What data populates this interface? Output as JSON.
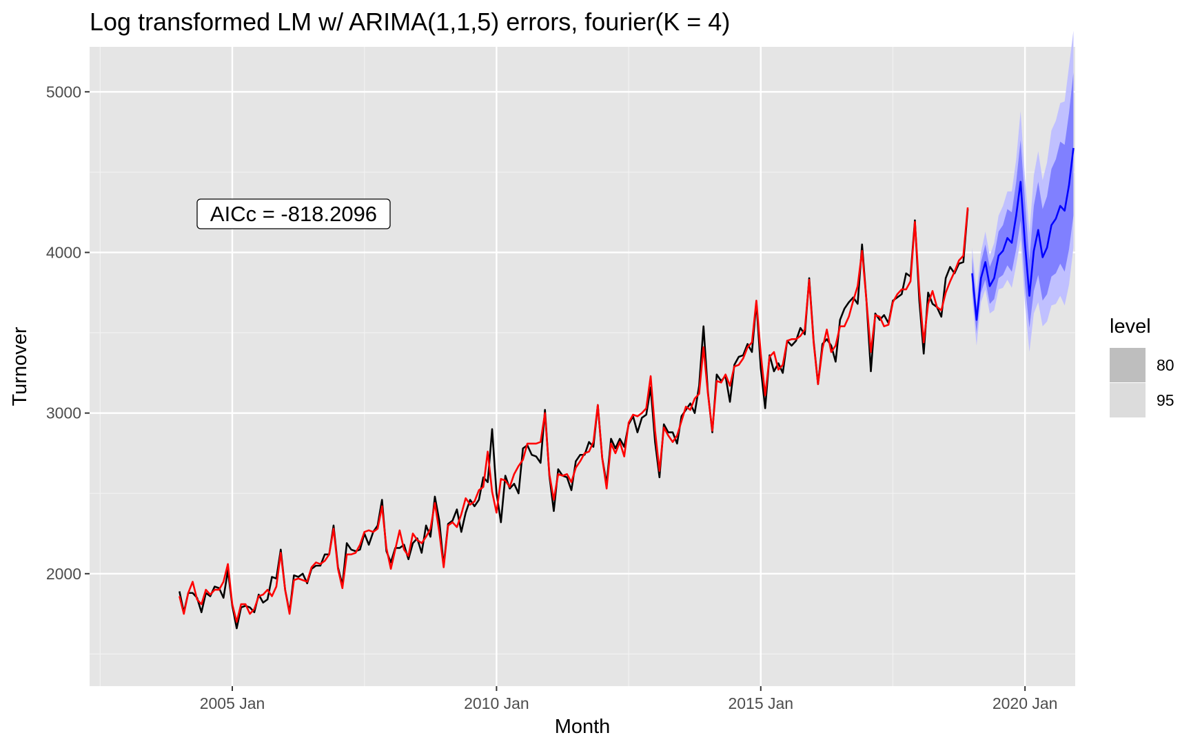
{
  "chart_data": {
    "type": "line",
    "title": "Log transformed LM w/ ARIMA(1,1,5) errors, fourier(K = 4)",
    "xlabel": "Month",
    "ylabel": "Turnover",
    "x_ticks": [
      {
        "label": "2005 Jan",
        "value": 2005.0
      },
      {
        "label": "2010 Jan",
        "value": 2010.0
      },
      {
        "label": "2015 Jan",
        "value": 2015.0
      },
      {
        "label": "2020 Jan",
        "value": 2020.0
      }
    ],
    "y_ticks": [
      2000,
      3000,
      4000,
      5000
    ],
    "xlim": [
      2002.3,
      2020.95
    ],
    "ylim": [
      1300,
      5280
    ],
    "grid": true,
    "background": "#e5e5e5",
    "annotation": "AICc = -818.2096",
    "legend": {
      "title": "level",
      "entries": [
        "80",
        "95"
      ],
      "position": "right"
    },
    "colors": {
      "actual": "#000000",
      "fitted": "#ff0000",
      "forecast": "#0000ff",
      "band80": "#8080ff",
      "band95": "#c0c0ff",
      "legend80": "#bebebe",
      "legend95": "#dcdcdc"
    },
    "start": 2004.0,
    "step_months": 1,
    "series": [
      {
        "name": "",
        "color": "#000000",
        "values": [
          1890,
          1760,
          1880,
          1880,
          1850,
          1760,
          1880,
          1860,
          1920,
          1910,
          1850,
          2020,
          1800,
          1660,
          1790,
          1800,
          1790,
          1760,
          1870,
          1820,
          1840,
          1980,
          1970,
          2150,
          1900,
          1760,
          1990,
          1980,
          2000,
          1940,
          2030,
          2050,
          2050,
          2120,
          2120,
          2300,
          2040,
          1930,
          2190,
          2150,
          2140,
          2150,
          2250,
          2180,
          2260,
          2300,
          2460,
          2140,
          2070,
          2160,
          2160,
          2180,
          2090,
          2190,
          2220,
          2130,
          2300,
          2230,
          2480,
          2330,
          2050,
          2310,
          2330,
          2400,
          2260,
          2380,
          2460,
          2420,
          2460,
          2600,
          2570,
          2900,
          2500,
          2320,
          2610,
          2530,
          2560,
          2500,
          2780,
          2800,
          2740,
          2730,
          2690,
          3020,
          2610,
          2390,
          2650,
          2610,
          2600,
          2520,
          2700,
          2740,
          2740,
          2820,
          2790,
          3050,
          2720,
          2560,
          2840,
          2780,
          2840,
          2790,
          2930,
          2980,
          2880,
          2970,
          2990,
          3160,
          2820,
          2600,
          2930,
          2880,
          2880,
          2810,
          2980,
          3020,
          3060,
          3000,
          3170,
          3540,
          3130,
          2880,
          3240,
          3200,
          3230,
          3070,
          3300,
          3350,
          3360,
          3430,
          3380,
          3690,
          3280,
          3030,
          3360,
          3260,
          3310,
          3250,
          3450,
          3420,
          3450,
          3530,
          3490,
          3840,
          3450,
          3180,
          3430,
          3460,
          3420,
          3320,
          3580,
          3650,
          3690,
          3720,
          3680,
          4050,
          3700,
          3260,
          3620,
          3580,
          3610,
          3560,
          3700,
          3720,
          3740,
          3870,
          3850,
          4200,
          3700,
          3370,
          3750,
          3680,
          3660,
          3600,
          3840,
          3910,
          3870,
          3930,
          3940,
          4270
        ]
      },
      {
        "name": "",
        "color": "#ff0000",
        "values": [
          1860,
          1750,
          1880,
          1950,
          1840,
          1810,
          1900,
          1870,
          1900,
          1900,
          1950,
          2060,
          1810,
          1700,
          1810,
          1810,
          1750,
          1780,
          1860,
          1870,
          1900,
          1860,
          1920,
          2130,
          1900,
          1750,
          1960,
          1970,
          1960,
          1950,
          2040,
          2070,
          2060,
          2080,
          2120,
          2280,
          2030,
          1910,
          2120,
          2120,
          2130,
          2180,
          2260,
          2270,
          2260,
          2280,
          2420,
          2160,
          2030,
          2150,
          2270,
          2150,
          2110,
          2250,
          2210,
          2190,
          2230,
          2280,
          2440,
          2260,
          2040,
          2300,
          2320,
          2290,
          2370,
          2470,
          2430,
          2450,
          2520,
          2540,
          2760,
          2510,
          2380,
          2590,
          2580,
          2540,
          2620,
          2670,
          2710,
          2810,
          2810,
          2810,
          2820,
          3000,
          2620,
          2460,
          2620,
          2610,
          2620,
          2570,
          2660,
          2700,
          2750,
          2760,
          2820,
          3050,
          2720,
          2530,
          2810,
          2750,
          2820,
          2730,
          2940,
          2990,
          2980,
          3000,
          3030,
          3230,
          2890,
          2640,
          2910,
          2860,
          2820,
          2860,
          2950,
          3040,
          3020,
          3090,
          3120,
          3410,
          3120,
          2890,
          3200,
          3190,
          3240,
          3170,
          3290,
          3300,
          3340,
          3410,
          3440,
          3700,
          3370,
          3110,
          3350,
          3380,
          3270,
          3300,
          3450,
          3460,
          3460,
          3480,
          3520,
          3830,
          3440,
          3180,
          3400,
          3520,
          3380,
          3420,
          3540,
          3540,
          3600,
          3700,
          3790,
          4010,
          3700,
          3380,
          3610,
          3600,
          3540,
          3550,
          3690,
          3740,
          3770,
          3770,
          3820,
          4190,
          3760,
          3440,
          3680,
          3760,
          3660,
          3640,
          3750,
          3820,
          3880,
          3950,
          3980,
          4280
        ]
      },
      {
        "name": "",
        "color": "#0000ff",
        "values": [
          3870,
          3580,
          3840,
          3940,
          3790,
          3840,
          3980,
          4010,
          4090,
          4060,
          4230,
          4440,
          4050,
          3730,
          4010,
          4140,
          3970,
          4030,
          4170,
          4210,
          4290,
          4260,
          4420,
          4650
        ]
      }
    ],
    "forecast_start": 2019.0,
    "interval_80": {
      "lower": [
        3770,
        3500,
        3750,
        3830,
        3680,
        3710,
        3840,
        3860,
        3920,
        3880,
        4020,
        4200,
        3800,
        3530,
        3760,
        3860,
        3700,
        3740,
        3850,
        3870,
        3930,
        3880,
        4020,
        4230
      ],
      "upper": [
        3970,
        3660,
        3940,
        4050,
        3910,
        3980,
        4130,
        4170,
        4270,
        4250,
        4440,
        4700,
        4320,
        3950,
        4290,
        4440,
        4270,
        4350,
        4520,
        4580,
        4690,
        4670,
        4870,
        5120
      ]
    },
    "interval_95": {
      "lower": [
        3720,
        3420,
        3690,
        3770,
        3620,
        3640,
        3770,
        3780,
        3830,
        3780,
        3920,
        4080,
        3680,
        3380,
        3620,
        3690,
        3540,
        3570,
        3670,
        3680,
        3730,
        3670,
        3800,
        4030
      ],
      "upper": [
        4030,
        3760,
        4000,
        4130,
        3980,
        4060,
        4230,
        4290,
        4380,
        4380,
        4580,
        4880,
        4460,
        4120,
        4480,
        4630,
        4450,
        4560,
        4760,
        4820,
        4930,
        4940,
        5160,
        5380
      ]
    }
  }
}
